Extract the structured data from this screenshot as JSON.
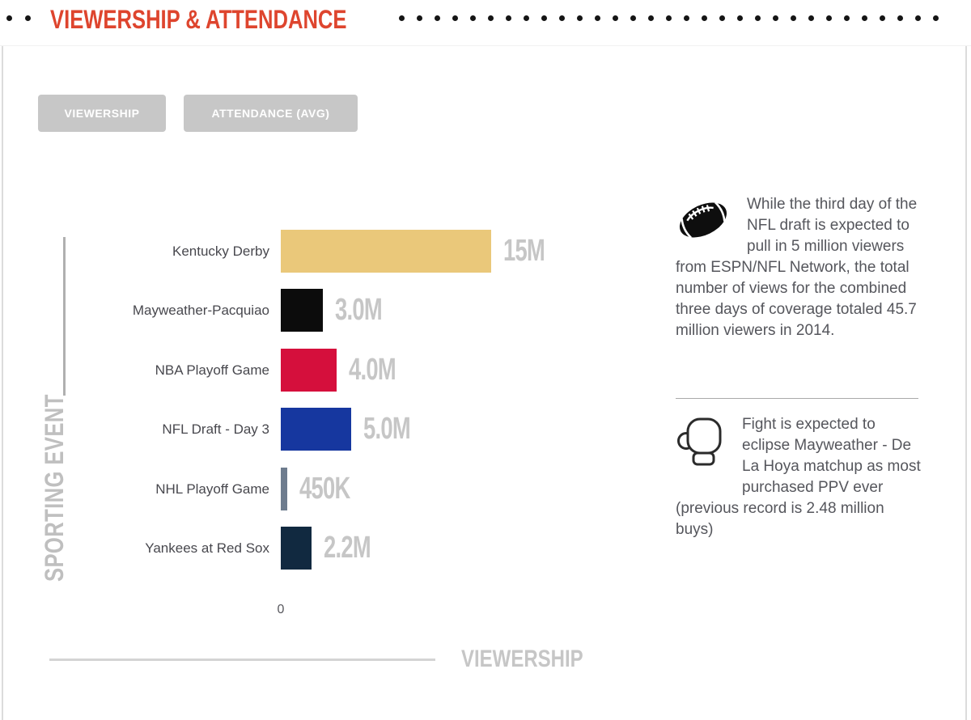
{
  "header": {
    "title": "VIEWERSHIP & ATTENDANCE",
    "accent_color": "#DE452E",
    "left_dots_count": 2,
    "right_dots_count": 31
  },
  "tabs": [
    {
      "label": "VIEWERSHIP",
      "active": true
    },
    {
      "label": "ATTENDANCE (AVG)",
      "active": false
    }
  ],
  "chart_data": {
    "type": "bar",
    "orientation": "horizontal",
    "title": "",
    "xlabel": "VIEWERSHIP",
    "ylabel": "SPORTING EVENT",
    "x_tick_labels": [
      "0"
    ],
    "xlim": [
      0,
      15000000
    ],
    "grid": false,
    "legend": false,
    "categories": [
      "Kentucky Derby",
      "Mayweather-Pacquiao",
      "NBA Playoff Game",
      "NFL Draft - Day 3",
      "NHL Playoff Game",
      "Yankees at Red Sox"
    ],
    "values": [
      15000000,
      3000000,
      4000000,
      5000000,
      450000,
      2200000
    ],
    "value_labels": [
      "15M",
      "3.0M",
      "4.0M",
      "5.0M",
      "450K",
      "2.2M"
    ],
    "bar_colors": [
      "#EAC87A",
      "#0C0C0C",
      "#D50F3C",
      "#16379F",
      "#6E7C8E",
      "#112940"
    ],
    "value_label_color": "#C6C6C6",
    "axis_label_color": "#BFBFBF"
  },
  "annotations": [
    {
      "icon": "football-icon",
      "text": "While the third day of the NFL draft is expected to pull in 5 million viewers from ESPN/NFL Network, the total number of views for the combined three days of coverage totaled 45.7 million viewers in 2014."
    },
    {
      "icon": "boxing-glove-icon",
      "text": "Fight is expected to eclipse Mayweather - De La Hoya matchup as most purchased PPV ever (previous record is 2.48 million buys)"
    }
  ]
}
